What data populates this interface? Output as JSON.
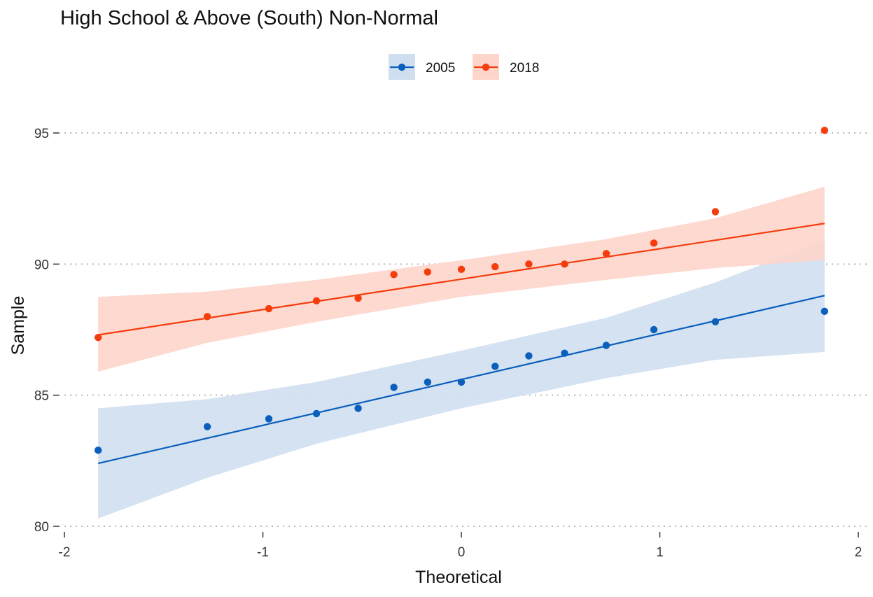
{
  "chart_data": {
    "type": "scatter",
    "title": "High School & Above (South) Non-Normal",
    "xlabel": "Theoretical",
    "ylabel": "Sample",
    "xlim": [
      -2,
      2
    ],
    "ylim": [
      80,
      95
    ],
    "x_ticks": [
      "-2",
      "-1",
      "0",
      "1",
      "2"
    ],
    "y_ticks": [
      "80",
      "85",
      "90",
      "95"
    ],
    "grid": "horizontal dotted",
    "legend_position": "top",
    "series": [
      {
        "name": "2005",
        "color": "#0b5fbc",
        "band_color": "#cfdff0",
        "points": [
          [
            -1.83,
            82.9
          ],
          [
            -1.28,
            83.8
          ],
          [
            -0.97,
            84.1
          ],
          [
            -0.73,
            84.3
          ],
          [
            -0.52,
            84.5
          ],
          [
            -0.34,
            85.3
          ],
          [
            -0.17,
            85.5
          ],
          [
            0.0,
            85.5
          ],
          [
            0.17,
            86.1
          ],
          [
            0.34,
            86.5
          ],
          [
            0.52,
            86.6
          ],
          [
            0.73,
            86.9
          ],
          [
            0.97,
            87.5
          ],
          [
            1.28,
            87.8
          ],
          [
            1.83,
            88.2
          ]
        ],
        "line": [
          [
            -1.83,
            82.4
          ],
          [
            1.83,
            88.8
          ]
        ],
        "band_upper": [
          [
            -1.83,
            84.5
          ],
          [
            -1.28,
            84.85
          ],
          [
            -0.73,
            85.5
          ],
          [
            0.0,
            86.7
          ],
          [
            0.73,
            87.95
          ],
          [
            1.28,
            89.3
          ],
          [
            1.83,
            90.9
          ]
        ],
        "band_lower": [
          [
            -1.83,
            80.3
          ],
          [
            -1.28,
            81.85
          ],
          [
            -0.73,
            83.15
          ],
          [
            0.0,
            84.5
          ],
          [
            0.73,
            85.65
          ],
          [
            1.28,
            86.35
          ],
          [
            1.83,
            86.65
          ]
        ]
      },
      {
        "name": "2018",
        "color": "#f53c0c",
        "band_color": "#fdd5cb",
        "points": [
          [
            -1.83,
            87.2
          ],
          [
            -1.28,
            88.0
          ],
          [
            -0.97,
            88.3
          ],
          [
            -0.73,
            88.6
          ],
          [
            -0.52,
            88.7
          ],
          [
            -0.34,
            89.6
          ],
          [
            -0.17,
            89.7
          ],
          [
            0.0,
            89.8
          ],
          [
            0.17,
            89.9
          ],
          [
            0.34,
            90.0
          ],
          [
            0.52,
            90.0
          ],
          [
            0.73,
            90.4
          ],
          [
            0.97,
            90.8
          ],
          [
            1.28,
            92.0
          ],
          [
            1.83,
            95.1
          ]
        ],
        "line": [
          [
            -1.83,
            87.3
          ],
          [
            1.83,
            91.55
          ]
        ],
        "band_upper": [
          [
            -1.83,
            88.75
          ],
          [
            -1.28,
            88.95
          ],
          [
            -0.73,
            89.4
          ],
          [
            0.0,
            90.15
          ],
          [
            0.73,
            90.95
          ],
          [
            1.28,
            91.75
          ],
          [
            1.83,
            92.95
          ]
        ],
        "band_lower": [
          [
            -1.83,
            85.9
          ],
          [
            -1.28,
            87.0
          ],
          [
            -0.73,
            87.8
          ],
          [
            0.0,
            88.75
          ],
          [
            0.73,
            89.4
          ],
          [
            1.28,
            89.85
          ],
          [
            1.83,
            90.15
          ]
        ]
      }
    ]
  }
}
